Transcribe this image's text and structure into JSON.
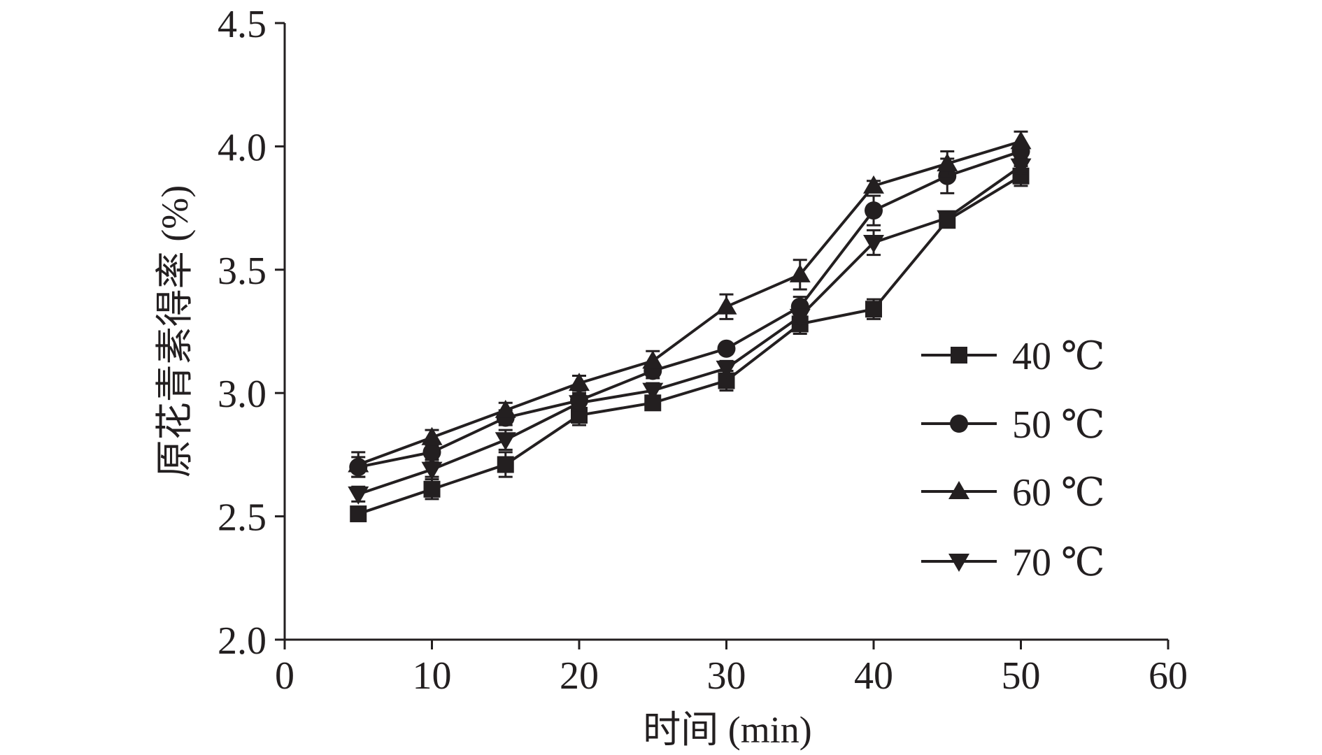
{
  "chart_data": {
    "type": "line",
    "title": "",
    "xlabel": "时间 (min)",
    "ylabel": "原花青素得率 (%)",
    "xlim": [
      0,
      60
    ],
    "ylim": [
      2.0,
      4.5
    ],
    "xticks": [
      "0",
      "10",
      "20",
      "30",
      "40",
      "50",
      "60"
    ],
    "yticks": [
      "2.0",
      "2.5",
      "3.0",
      "3.5",
      "4.0",
      "4.5"
    ],
    "xtick_values": [
      0,
      10,
      20,
      30,
      40,
      50,
      60
    ],
    "ytick_values": [
      2.0,
      2.5,
      3.0,
      3.5,
      4.0,
      4.5
    ],
    "grid": false,
    "legend_position": "right",
    "x": [
      5,
      10,
      15,
      20,
      25,
      30,
      35,
      40,
      45,
      50
    ],
    "series": [
      {
        "name": "40 ℃",
        "marker": "square",
        "values": [
          2.51,
          2.61,
          2.71,
          2.91,
          2.96,
          3.05,
          3.28,
          3.34,
          3.7,
          3.88
        ],
        "errors": [
          0.02,
          0.04,
          0.05,
          0.04,
          0.02,
          0.04,
          0.04,
          0.04,
          0.02,
          0.04
        ]
      },
      {
        "name": "50 ℃",
        "marker": "circle",
        "values": [
          2.7,
          2.76,
          2.9,
          2.97,
          3.09,
          3.18,
          3.35,
          3.74,
          3.88,
          3.98
        ],
        "errors": [
          0.04,
          0.03,
          0.03,
          0.03,
          0.03,
          0.02,
          0.04,
          0.06,
          0.07,
          0.03
        ]
      },
      {
        "name": "60 ℃",
        "marker": "triangle-up",
        "values": [
          2.71,
          2.82,
          2.93,
          3.04,
          3.13,
          3.35,
          3.48,
          3.84,
          3.93,
          4.02
        ],
        "errors": [
          0.05,
          0.03,
          0.03,
          0.03,
          0.04,
          0.05,
          0.06,
          0.02,
          0.05,
          0.04
        ]
      },
      {
        "name": "70 ℃",
        "marker": "triangle-down",
        "values": [
          2.59,
          2.69,
          2.81,
          2.96,
          3.01,
          3.1,
          3.31,
          3.61,
          3.71,
          3.92
        ],
        "errors": [
          0.03,
          0.03,
          0.04,
          0.03,
          0.03,
          0.03,
          0.03,
          0.05,
          0.02,
          0.03
        ]
      }
    ],
    "colors": {
      "ink": "#231f20"
    }
  }
}
